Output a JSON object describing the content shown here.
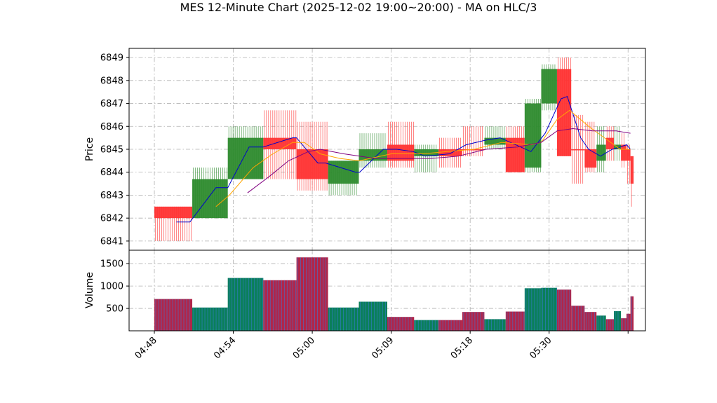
{
  "chart_data": {
    "type": "candlestick",
    "title": "MES 12-Minute Chart (2025-12-02 19:00~20:00) - MA on HLC/3",
    "ylabel_price": "Price",
    "ylabel_volume": "Volume",
    "price_ylim": [
      6840.6,
      6849.4
    ],
    "volume_ylim": [
      0,
      1800
    ],
    "price_ticks": [
      6841,
      6842,
      6843,
      6844,
      6845,
      6846,
      6847,
      6848,
      6849
    ],
    "volume_ticks": [
      500,
      1000,
      1500
    ],
    "x_range": [
      -3.2,
      62.2
    ],
    "x_ticks": [
      {
        "x": 0,
        "label": "04:48"
      },
      {
        "x": 10,
        "label": "04:54"
      },
      {
        "x": 20,
        "label": "05:00"
      },
      {
        "x": 30,
        "label": "05:09"
      },
      {
        "x": 40,
        "label": "05:18"
      },
      {
        "x": 50,
        "label": "05:30"
      },
      {
        "x": 60,
        "label": ""
      }
    ],
    "grid": true,
    "colors": {
      "up": "#2e8b2e",
      "down": "#ff3333",
      "volume_up": "#0a7f5a",
      "volume_down": "#b0254a",
      "ma_blue": "#0000cc",
      "ma_orange": "#ffa500",
      "ma_purple": "#800080"
    },
    "candles": [
      {
        "x0": 0,
        "x1": 4.8,
        "open": 6842.5,
        "high": 6842.5,
        "low": 6841.0,
        "close": 6842.0,
        "dir": "down",
        "volume": 710
      },
      {
        "x0": 4.8,
        "x1": 9.3,
        "open": 6842.0,
        "high": 6844.2,
        "low": 6842.0,
        "close": 6843.7,
        "dir": "up",
        "volume": 520
      },
      {
        "x0": 9.3,
        "x1": 13.8,
        "open": 6843.7,
        "high": 6846.0,
        "low": 6843.7,
        "close": 6845.5,
        "dir": "up",
        "volume": 1180
      },
      {
        "x0": 13.8,
        "x1": 18.0,
        "open": 6845.5,
        "high": 6846.7,
        "low": 6843.7,
        "close": 6845.0,
        "dir": "down",
        "volume": 1130
      },
      {
        "x0": 18.0,
        "x1": 22.0,
        "open": 6845.0,
        "high": 6846.2,
        "low": 6843.2,
        "close": 6843.7,
        "dir": "down",
        "volume": 1640
      },
      {
        "x0": 22.0,
        "x1": 25.9,
        "open": 6843.5,
        "high": 6844.5,
        "low": 6843.0,
        "close": 6844.5,
        "dir": "up",
        "volume": 520
      },
      {
        "x0": 25.9,
        "x1": 29.5,
        "open": 6844.5,
        "high": 6845.7,
        "low": 6844.2,
        "close": 6845.0,
        "dir": "up",
        "volume": 650
      },
      {
        "x0": 29.5,
        "x1": 32.9,
        "open": 6845.2,
        "high": 6846.2,
        "low": 6844.2,
        "close": 6844.5,
        "dir": "down",
        "volume": 310
      },
      {
        "x0": 32.9,
        "x1": 36.0,
        "open": 6844.7,
        "high": 6845.2,
        "low": 6844.0,
        "close": 6845.0,
        "dir": "up",
        "volume": 240
      },
      {
        "x0": 36.0,
        "x1": 39.0,
        "open": 6845.0,
        "high": 6845.5,
        "low": 6844.2,
        "close": 6844.7,
        "dir": "down",
        "volume": 240
      },
      {
        "x0": 39.0,
        "x1": 41.8,
        "open": 6845.0,
        "high": 6846.0,
        "low": 6844.7,
        "close": 6845.0,
        "dir": "down",
        "volume": 420
      },
      {
        "x0": 41.8,
        "x1": 44.5,
        "open": 6845.2,
        "high": 6846.0,
        "low": 6845.0,
        "close": 6845.5,
        "dir": "up",
        "volume": 260
      },
      {
        "x0": 44.5,
        "x1": 46.9,
        "open": 6845.5,
        "high": 6846.0,
        "low": 6844.0,
        "close": 6844.0,
        "dir": "down",
        "volume": 430
      },
      {
        "x0": 46.9,
        "x1": 49.0,
        "open": 6844.2,
        "high": 6847.2,
        "low": 6844.0,
        "close": 6847.0,
        "dir": "up",
        "volume": 950
      },
      {
        "x0": 49.0,
        "x1": 51.0,
        "open": 6847.0,
        "high": 6848.7,
        "low": 6846.7,
        "close": 6848.5,
        "dir": "up",
        "volume": 960
      },
      {
        "x0": 51.0,
        "x1": 52.8,
        "open": 6848.5,
        "high": 6849.0,
        "low": 6844.7,
        "close": 6844.7,
        "dir": "down",
        "volume": 920
      },
      {
        "x0": 52.8,
        "x1": 54.5,
        "open": 6845.0,
        "high": 6846.5,
        "low": 6843.5,
        "close": 6845.0,
        "dir": "down",
        "volume": 560
      },
      {
        "x0": 54.5,
        "x1": 56.0,
        "open": 6845.0,
        "high": 6846.2,
        "low": 6844.0,
        "close": 6844.2,
        "dir": "down",
        "volume": 420
      },
      {
        "x0": 56.0,
        "x1": 57.2,
        "open": 6844.5,
        "high": 6846.0,
        "low": 6844.0,
        "close": 6845.2,
        "dir": "up",
        "volume": 340
      },
      {
        "x0": 57.2,
        "x1": 58.2,
        "open": 6845.5,
        "high": 6846.0,
        "low": 6844.5,
        "close": 6845.0,
        "dir": "down",
        "volume": 260
      },
      {
        "x0": 58.2,
        "x1": 59.1,
        "open": 6845.0,
        "high": 6846.0,
        "low": 6844.5,
        "close": 6845.2,
        "dir": "up",
        "volume": 440
      },
      {
        "x0": 59.1,
        "x1": 59.8,
        "open": 6845.2,
        "high": 6845.7,
        "low": 6844.2,
        "close": 6844.5,
        "dir": "down",
        "volume": 280
      },
      {
        "x0": 59.8,
        "x1": 60.3,
        "open": 6845.0,
        "high": 6845.2,
        "low": 6843.5,
        "close": 6844.5,
        "dir": "down",
        "volume": 380
      },
      {
        "x0": 60.3,
        "x1": 60.7,
        "open": 6844.7,
        "high": 6844.7,
        "low": 6842.5,
        "close": 6843.5,
        "dir": "down",
        "volume": 770
      }
    ],
    "ma_series": [
      {
        "color_key": "ma_blue",
        "points": [
          [
            2.8,
            6841.83
          ],
          [
            4.5,
            6841.83
          ],
          [
            7.8,
            6843.33
          ],
          [
            9.3,
            6843.33
          ],
          [
            12.0,
            6845.1
          ],
          [
            13.8,
            6845.1
          ],
          [
            17.5,
            6845.5
          ],
          [
            18.0,
            6845.5
          ],
          [
            20.7,
            6844.4
          ],
          [
            21.7,
            6844.4
          ],
          [
            25.5,
            6844.0
          ],
          [
            26.0,
            6844.0
          ],
          [
            29.0,
            6845.0
          ],
          [
            30.7,
            6845.0
          ],
          [
            32.8,
            6844.9
          ],
          [
            34.3,
            6844.7
          ],
          [
            37.4,
            6844.8
          ],
          [
            39.5,
            6845.2
          ],
          [
            42.0,
            6845.4
          ],
          [
            43.8,
            6845.5
          ],
          [
            47.7,
            6844.9
          ],
          [
            49.5,
            6845.7
          ],
          [
            51.5,
            6847.2
          ],
          [
            52.3,
            6847.3
          ],
          [
            54.0,
            6845.5
          ],
          [
            55.0,
            6845.0
          ],
          [
            56.5,
            6844.7
          ],
          [
            58.0,
            6845.0
          ],
          [
            59.0,
            6845.1
          ],
          [
            59.8,
            6845.2
          ],
          [
            60.3,
            6845.0
          ]
        ]
      },
      {
        "color_key": "ma_orange",
        "points": [
          [
            7.8,
            6842.5
          ],
          [
            9.5,
            6843.0
          ],
          [
            12.5,
            6844.2
          ],
          [
            15.0,
            6844.8
          ],
          [
            17.5,
            6845.3
          ],
          [
            19.0,
            6845.3
          ],
          [
            21.0,
            6844.8
          ],
          [
            23.5,
            6844.6
          ],
          [
            26.0,
            6844.5
          ],
          [
            30.0,
            6844.8
          ],
          [
            34.0,
            6844.8
          ],
          [
            37.0,
            6844.9
          ],
          [
            40.5,
            6845.0
          ],
          [
            44.0,
            6845.3
          ],
          [
            47.7,
            6845.2
          ],
          [
            49.0,
            6845.3
          ],
          [
            51.0,
            6846.3
          ],
          [
            52.6,
            6846.7
          ],
          [
            55.0,
            6846.0
          ],
          [
            57.0,
            6845.5
          ],
          [
            59.0,
            6845.0
          ],
          [
            60.3,
            6845.0
          ]
        ]
      },
      {
        "color_key": "ma_purple",
        "points": [
          [
            11.8,
            6843.1
          ],
          [
            14.5,
            6843.8
          ],
          [
            17.0,
            6844.5
          ],
          [
            19.5,
            6844.9
          ],
          [
            21.0,
            6845.0
          ],
          [
            24.0,
            6844.8
          ],
          [
            28.0,
            6844.6
          ],
          [
            31.0,
            6844.6
          ],
          [
            35.0,
            6844.6
          ],
          [
            38.5,
            6844.7
          ],
          [
            42.0,
            6845.0
          ],
          [
            46.0,
            6845.1
          ],
          [
            49.0,
            6845.3
          ],
          [
            51.0,
            6845.8
          ],
          [
            53.0,
            6845.9
          ],
          [
            55.5,
            6845.8
          ],
          [
            58.5,
            6845.8
          ],
          [
            60.3,
            6845.7
          ]
        ]
      }
    ]
  }
}
